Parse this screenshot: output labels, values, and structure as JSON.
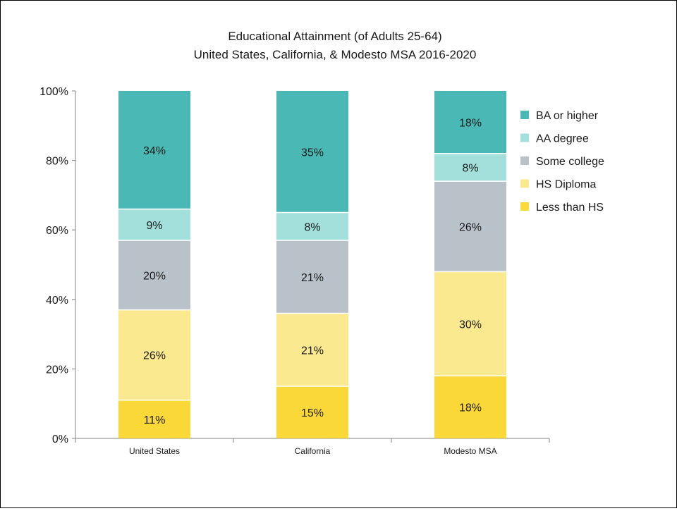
{
  "chart_data": {
    "type": "bar",
    "stacked": true,
    "title": [
      "Educational Attainment (of Adults 25-64)",
      "United States, California, & Modesto MSA 2016-2020"
    ],
    "xlabel": "",
    "ylabel": "",
    "ylim": [
      0,
      100
    ],
    "yticks": [
      "0%",
      "20%",
      "40%",
      "60%",
      "80%",
      "100%"
    ],
    "categories": [
      "United States",
      "California",
      "Modesto MSA"
    ],
    "series": [
      {
        "name": "Less than HS",
        "color": "#f9d838",
        "values": [
          11,
          15,
          18
        ],
        "labels": [
          "11%",
          "15%",
          "18%"
        ]
      },
      {
        "name": "HS Diploma",
        "color": "#fbe98f",
        "values": [
          26,
          21,
          30
        ],
        "labels": [
          "26%",
          "21%",
          "30%"
        ]
      },
      {
        "name": "Some college",
        "color": "#b9c1c9",
        "values": [
          20,
          21,
          26
        ],
        "labels": [
          "20%",
          "21%",
          "26%"
        ]
      },
      {
        "name": "AA degree",
        "color": "#a3e0dc",
        "values": [
          9,
          8,
          8
        ],
        "labels": [
          "9%",
          "8%",
          "8%"
        ]
      },
      {
        "name": "BA or higher",
        "color": "#4ab8b4",
        "values": [
          34,
          35,
          18
        ],
        "labels": [
          "34%",
          "35%",
          "18%"
        ]
      }
    ],
    "legend": {
      "placement": "right",
      "order": [
        "BA or higher",
        "AA degree",
        "Some college",
        "HS Diploma",
        "Less than HS"
      ]
    },
    "grid": false
  }
}
